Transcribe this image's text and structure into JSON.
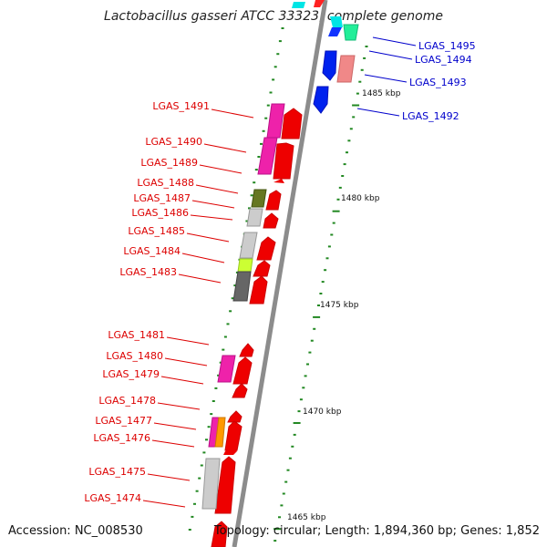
{
  "title": "Lactobacillus gasseri ATCC 33323, complete genome",
  "footer": {
    "accession": "Accession: NC_008530",
    "summary": "Topology: circular; Length: 1,894,360 bp; Genes: 1,852"
  },
  "scale_labels": [
    "1485 kbp",
    "1480 kbp",
    "1475 kbp",
    "1470 kbp",
    "1465 kbp"
  ],
  "colors": {
    "backbone": "#888888",
    "forward_gene": "#ff0000",
    "reverse_gene": "#0022ee",
    "label_red": "#dd0000",
    "label_blue": "#0000cc",
    "tick": "#228822"
  },
  "gene_labels_left": [
    "LGAS_1491",
    "LGAS_1490",
    "LGAS_1489",
    "LGAS_1488",
    "LGAS_1487",
    "LGAS_1486",
    "LGAS_1485",
    "LGAS_1484",
    "LGAS_1483",
    "LGAS_1481",
    "LGAS_1480",
    "LGAS_1479",
    "LGAS_1478",
    "LGAS_1477",
    "LGAS_1476",
    "LGAS_1475",
    "LGAS_1474"
  ],
  "gene_labels_right": [
    "LGAS_1495",
    "LGAS_1494",
    "LGAS_1493",
    "LGAS_1492"
  ]
}
